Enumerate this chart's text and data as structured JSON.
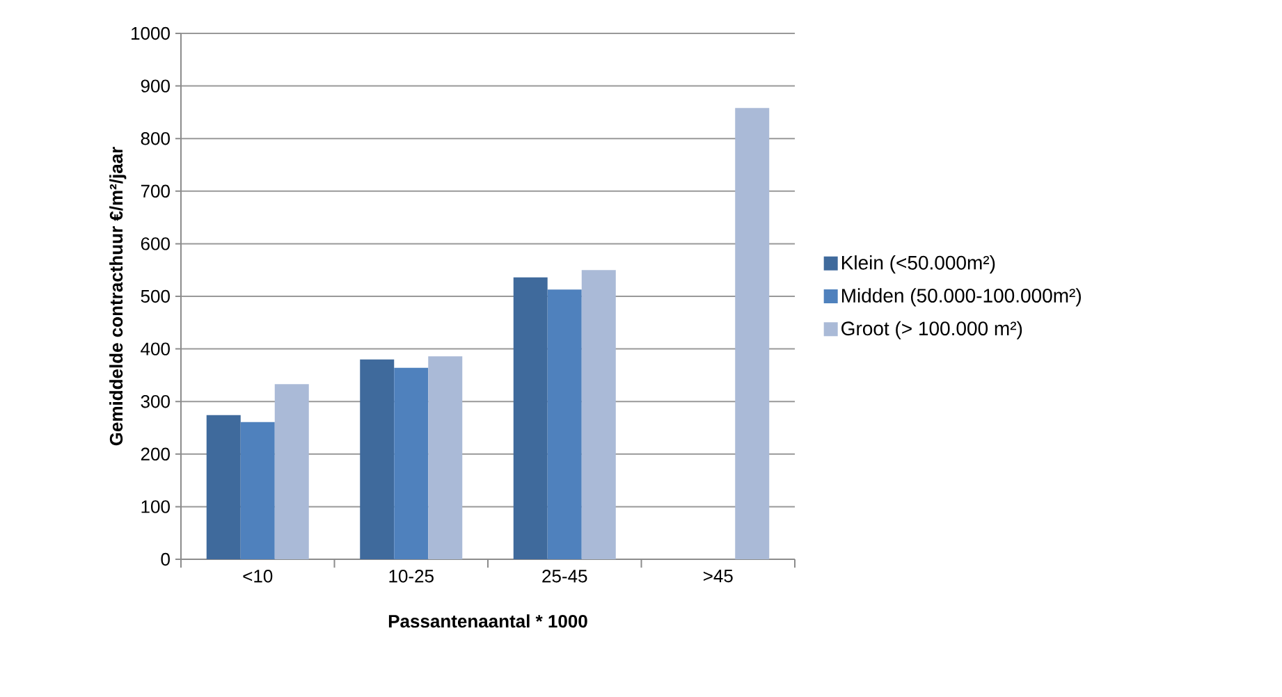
{
  "chart_data": {
    "type": "bar",
    "xlabel": "Passantenaantal * 1000",
    "ylabel": "Gemiddelde contracthuur €/m²/jaar",
    "categories": [
      "<10",
      "10-25",
      "25-45",
      ">45"
    ],
    "series": [
      {
        "name": "Klein (<50.000m²)",
        "color": "#3f6a9c",
        "values": [
          274,
          380,
          536,
          null
        ]
      },
      {
        "name": "Midden (50.000-100.000m²)",
        "color": "#4f81bd",
        "values": [
          261,
          364,
          513,
          null
        ]
      },
      {
        "name": "Groot (> 100.000 m²)",
        "color": "#aabad7",
        "values": [
          333,
          386,
          550,
          858
        ]
      }
    ],
    "ylim": [
      0,
      1000
    ],
    "yticks": [
      0,
      100,
      200,
      300,
      400,
      500,
      600,
      700,
      800,
      900,
      1000
    ],
    "grid": "y",
    "legend": "right"
  }
}
